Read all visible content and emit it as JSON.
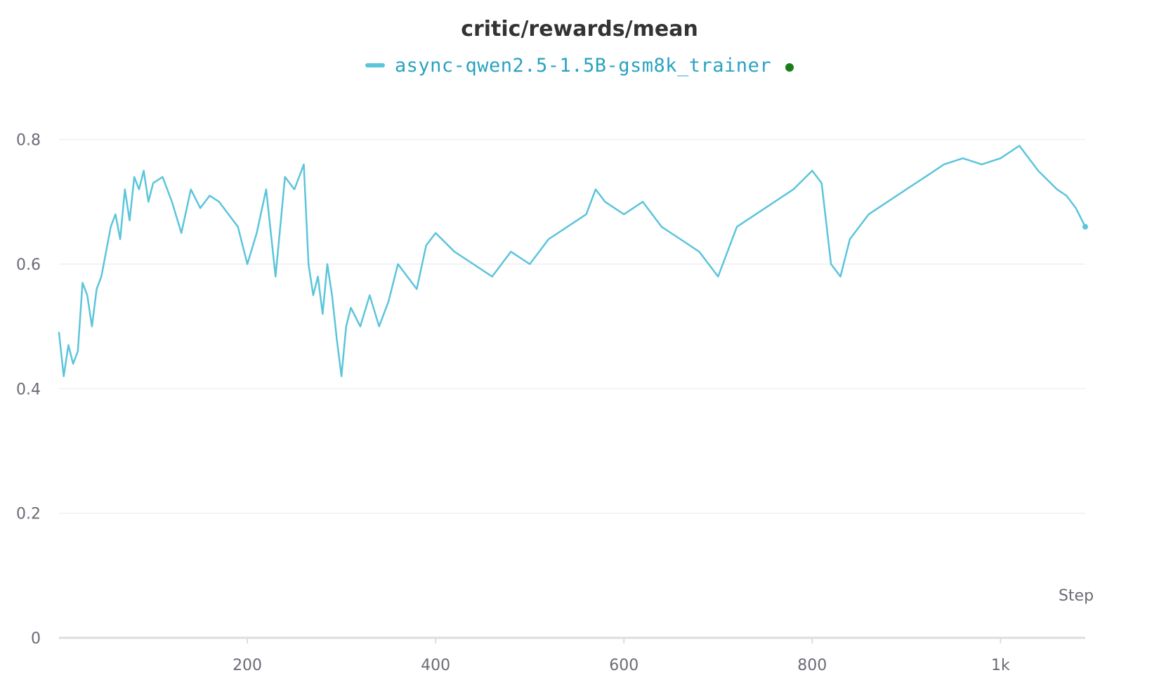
{
  "chart_data": {
    "type": "line",
    "title": "critic/rewards/mean",
    "xlabel": "Step",
    "ylabel": "",
    "xlim": [
      0,
      1090
    ],
    "ylim": [
      0,
      0.9
    ],
    "x_ticks": [
      {
        "value": 200,
        "label": "200"
      },
      {
        "value": 400,
        "label": "400"
      },
      {
        "value": 600,
        "label": "600"
      },
      {
        "value": 800,
        "label": "800"
      },
      {
        "value": 1000,
        "label": "1k"
      }
    ],
    "y_ticks": [
      {
        "value": 0,
        "label": "0"
      },
      {
        "value": 0.2,
        "label": "0.2"
      },
      {
        "value": 0.4,
        "label": "0.4"
      },
      {
        "value": 0.6,
        "label": "0.6"
      },
      {
        "value": 0.8,
        "label": "0.8"
      }
    ],
    "grid": true,
    "legend_position": "top-center",
    "series": [
      {
        "name": "async-qwen2.5-1.5B-gsm8k_trainer",
        "color": "#5bc5db",
        "x": [
          0,
          5,
          10,
          15,
          20,
          25,
          30,
          35,
          40,
          45,
          50,
          55,
          60,
          65,
          70,
          75,
          80,
          85,
          90,
          95,
          100,
          110,
          120,
          130,
          140,
          150,
          160,
          170,
          180,
          190,
          200,
          210,
          220,
          230,
          240,
          250,
          260,
          265,
          270,
          275,
          280,
          285,
          290,
          295,
          300,
          305,
          310,
          320,
          330,
          340,
          350,
          360,
          370,
          380,
          390,
          400,
          420,
          440,
          460,
          480,
          500,
          520,
          540,
          560,
          570,
          580,
          600,
          620,
          640,
          660,
          680,
          700,
          720,
          740,
          760,
          780,
          800,
          810,
          820,
          830,
          840,
          850,
          860,
          880,
          900,
          920,
          940,
          960,
          980,
          1000,
          1020,
          1040,
          1060,
          1070,
          1080,
          1090
        ],
        "y": [
          0.49,
          0.42,
          0.47,
          0.44,
          0.46,
          0.57,
          0.55,
          0.5,
          0.56,
          0.58,
          0.62,
          0.66,
          0.68,
          0.64,
          0.72,
          0.67,
          0.74,
          0.72,
          0.75,
          0.7,
          0.73,
          0.74,
          0.7,
          0.65,
          0.72,
          0.69,
          0.71,
          0.7,
          0.68,
          0.66,
          0.6,
          0.65,
          0.72,
          0.58,
          0.74,
          0.72,
          0.76,
          0.6,
          0.55,
          0.58,
          0.52,
          0.6,
          0.55,
          0.48,
          0.42,
          0.5,
          0.53,
          0.5,
          0.55,
          0.5,
          0.54,
          0.6,
          0.58,
          0.56,
          0.63,
          0.65,
          0.62,
          0.6,
          0.58,
          0.62,
          0.6,
          0.64,
          0.66,
          0.68,
          0.72,
          0.7,
          0.68,
          0.7,
          0.66,
          0.64,
          0.62,
          0.58,
          0.66,
          0.68,
          0.7,
          0.72,
          0.75,
          0.73,
          0.6,
          0.58,
          0.64,
          0.66,
          0.68,
          0.7,
          0.72,
          0.74,
          0.76,
          0.77,
          0.76,
          0.77,
          0.79,
          0.75,
          0.72,
          0.71,
          0.69,
          0.66
        ]
      }
    ]
  }
}
